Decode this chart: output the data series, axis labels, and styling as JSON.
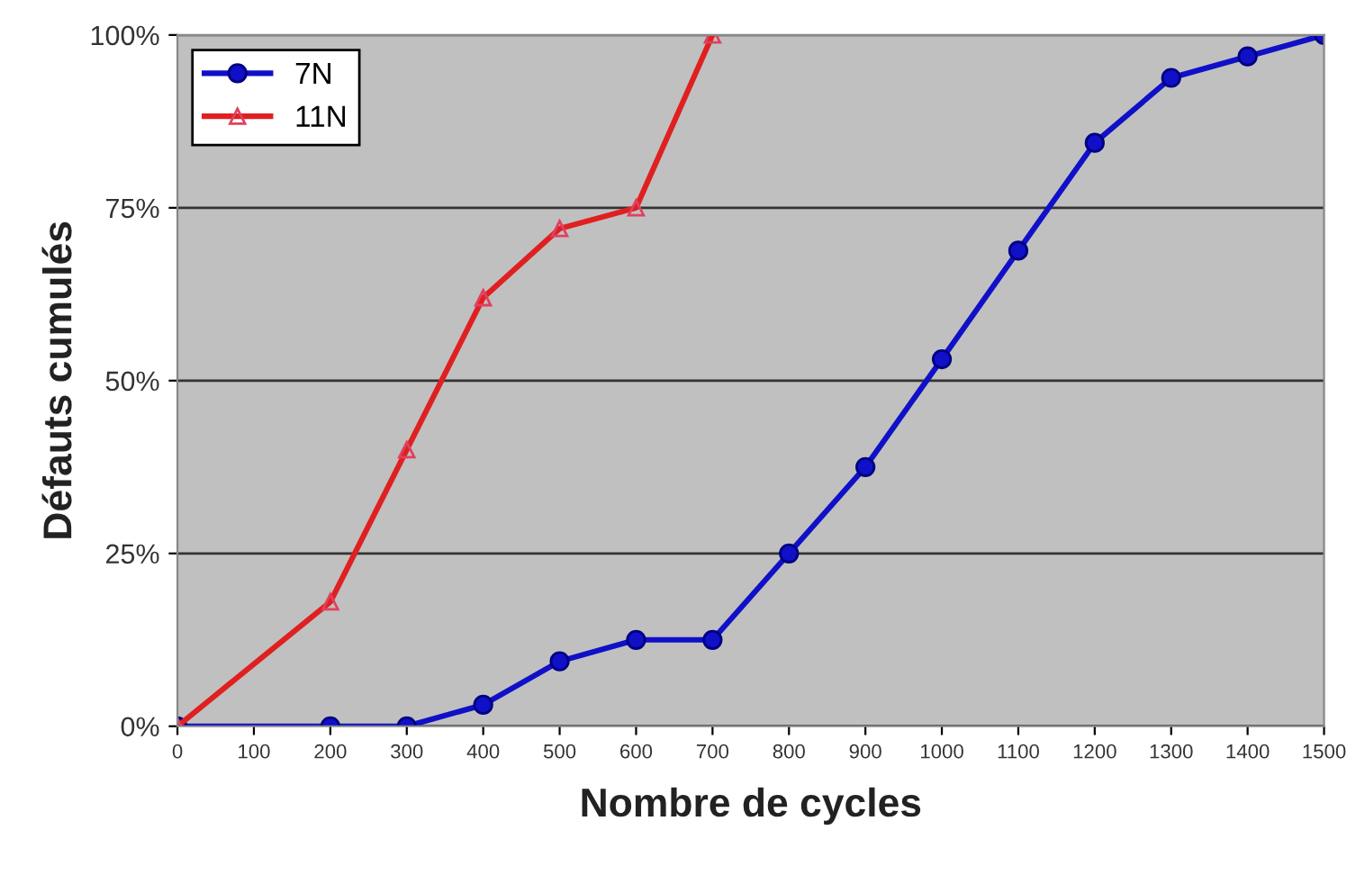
{
  "chart_data": {
    "type": "line",
    "xlabel": "Nombre de cycles",
    "ylabel": "Défauts cumulés",
    "xlim": [
      0,
      1500
    ],
    "xticks": [
      0,
      100,
      200,
      300,
      400,
      500,
      600,
      700,
      800,
      900,
      1000,
      1100,
      1200,
      1300,
      1400,
      1500
    ],
    "ylim": [
      0,
      100
    ],
    "yticks": [
      {
        "value": 0,
        "label": "0%"
      },
      {
        "value": 25,
        "label": "25%"
      },
      {
        "value": 50,
        "label": "50%"
      },
      {
        "value": 75,
        "label": "75%"
      },
      {
        "value": 100,
        "label": "100%"
      }
    ],
    "grid": "y",
    "legend": "top left",
    "line_style": "solid",
    "series": [
      {
        "name": "7N",
        "color": "#1010c8",
        "marker": "circle",
        "x": [
          0,
          200,
          300,
          400,
          500,
          600,
          700,
          800,
          900,
          1000,
          1100,
          1200,
          1300,
          1400,
          1500
        ],
        "values": [
          0,
          0,
          0,
          3.1,
          9.4,
          12.5,
          12.5,
          25,
          37.5,
          53.1,
          68.8,
          84.4,
          93.8,
          96.9,
          100
        ]
      },
      {
        "name": "11N",
        "color": "#e02020",
        "marker": "triangle",
        "x": [
          0,
          200,
          300,
          400,
          500,
          600,
          700
        ],
        "values": [
          0,
          18,
          40,
          62,
          72,
          75,
          100
        ]
      }
    ]
  }
}
